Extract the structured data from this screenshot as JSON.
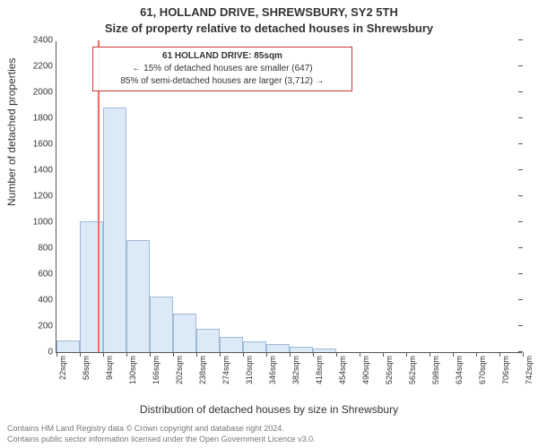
{
  "header": {
    "line1": "61, HOLLAND DRIVE, SHREWSBURY, SY2 5TH",
    "line2": "Size of property relative to detached houses in Shrewsbury"
  },
  "axes": {
    "ylabel": "Number of detached properties",
    "xlabel": "Distribution of detached houses by size in Shrewsbury",
    "ylim": [
      0,
      2400
    ],
    "ytick_step": 200,
    "yticks": [
      0,
      200,
      400,
      600,
      800,
      1000,
      1200,
      1400,
      1600,
      1800,
      2000,
      2200,
      2400
    ],
    "xticks": [
      "22sqm",
      "58sqm",
      "94sqm",
      "130sqm",
      "166sqm",
      "202sqm",
      "238sqm",
      "274sqm",
      "310sqm",
      "346sqm",
      "382sqm",
      "418sqm",
      "454sqm",
      "490sqm",
      "526sqm",
      "562sqm",
      "598sqm",
      "634sqm",
      "670sqm",
      "706sqm",
      "742sqm"
    ],
    "bin_width_sqm": 36,
    "x_range_sqm": [
      22,
      742
    ]
  },
  "chart": {
    "type": "histogram",
    "bin_edges_sqm": [
      22,
      58,
      94,
      130,
      166,
      202,
      238,
      274,
      310,
      346,
      382,
      418,
      454,
      490,
      526,
      562,
      598,
      634,
      670,
      706,
      742
    ],
    "counts": [
      90,
      1010,
      1880,
      860,
      430,
      300,
      180,
      120,
      80,
      60,
      40,
      30,
      0,
      0,
      0,
      0,
      0,
      0,
      0,
      0
    ],
    "bar_fill": "#dce9f7",
    "bar_stroke": "#9fb9d6",
    "bar_stroke_width": 1,
    "background_color": "#ffffff",
    "tick_fontsize": 10,
    "label_fontsize": 12,
    "title_fontsize": 13
  },
  "reference": {
    "value_sqm": 85,
    "line_color": "#ff6666",
    "line_width": 2
  },
  "callout": {
    "border_color": "#cc3333",
    "line_bold": "61 HOLLAND DRIVE: 85sqm",
    "line2": "← 15% of detached houses are smaller (647)",
    "line3": "85% of semi-detached houses are larger (3,712) →"
  },
  "attribution": {
    "line1": "Contains HM Land Registry data © Crown copyright and database right 2024.",
    "line2": "Contains public sector information licensed under the Open Government Licence v3.0."
  }
}
